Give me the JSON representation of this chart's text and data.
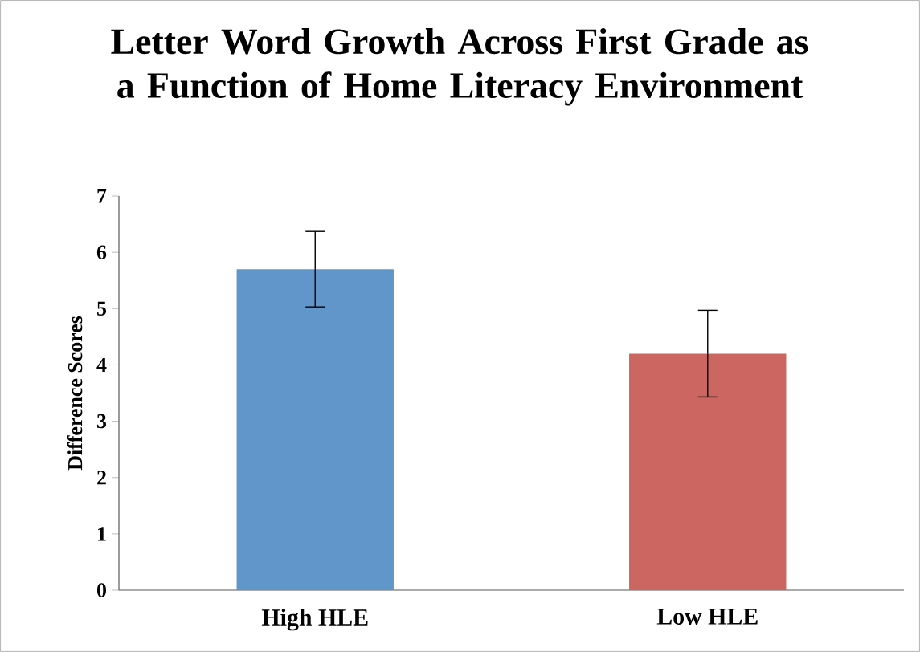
{
  "chart_data": {
    "type": "bar",
    "title": "Letter Word Growth Across First Grade as a Function of Home Literacy Environment",
    "ylabel": "Difference Scores",
    "categories": [
      "High HLE",
      "Low HLE"
    ],
    "values": [
      5.7,
      4.2
    ],
    "colors": [
      "#6096c9",
      "#cb6660"
    ],
    "errors": [
      0.67,
      0.77
    ],
    "ylim": [
      0,
      7
    ],
    "yticks": [
      0,
      1,
      2,
      3,
      4,
      5,
      6,
      7
    ],
    "grid": false
  }
}
